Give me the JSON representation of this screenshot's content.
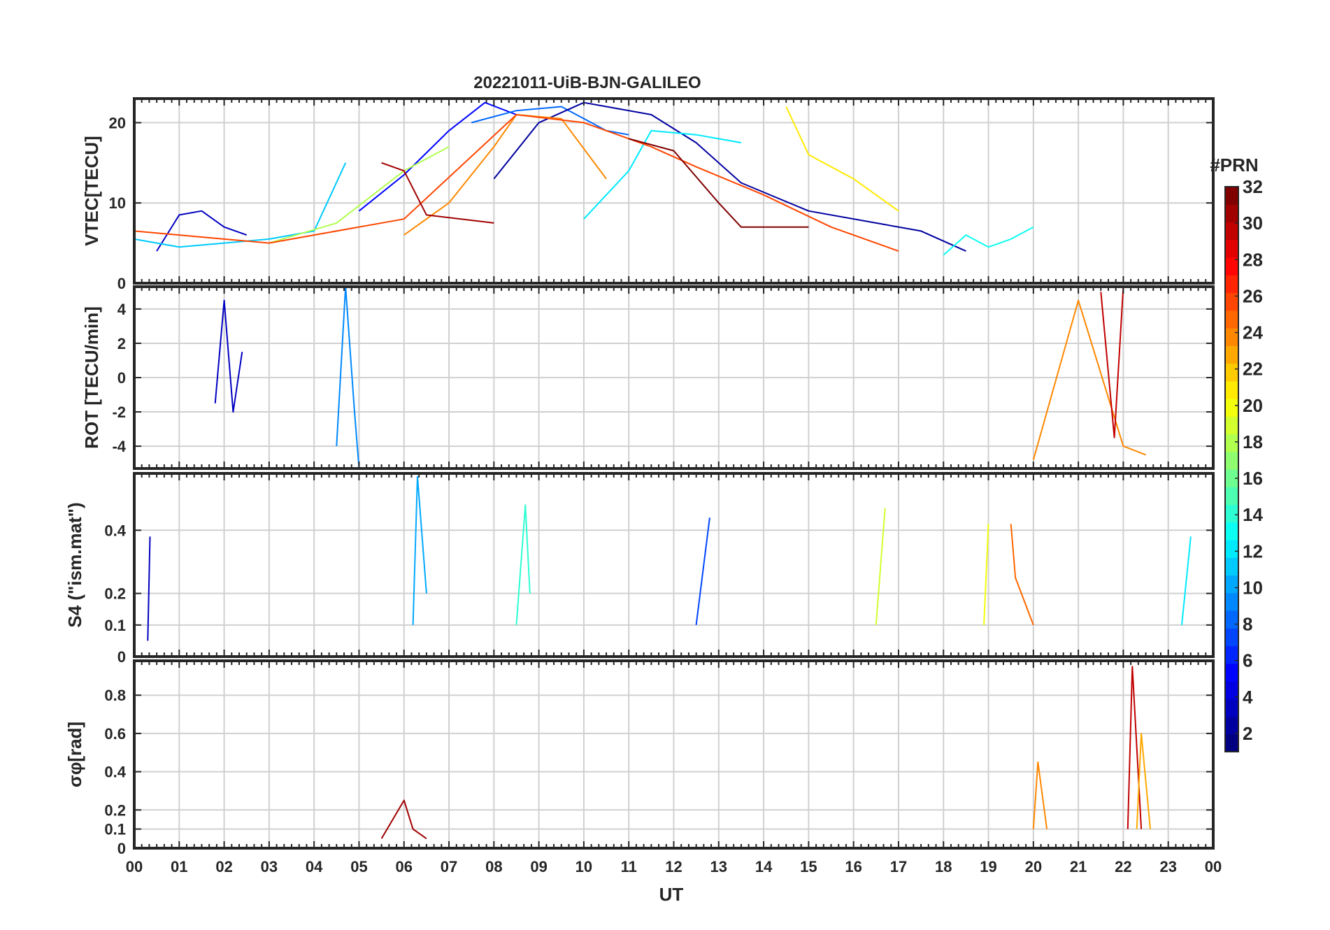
{
  "chart_data": [
    {
      "type": "line",
      "title": "20221011-UiB-BJN-GALILEO",
      "ylabel": "VTEC[TECU]",
      "xlabel": "",
      "xlim": [
        0,
        24
      ],
      "ylim": [
        0,
        23
      ],
      "yticks": [
        0,
        10,
        20
      ],
      "ytick_labels": [
        "0",
        "10",
        "20"
      ],
      "grid": true,
      "series": [
        {
          "name": "PRN 3",
          "prn": 3,
          "x": [
            0.5,
            1.0,
            1.5,
            2.0,
            2.5
          ],
          "y": [
            4.0,
            8.5,
            9.0,
            7.0,
            6.0
          ]
        },
        {
          "name": "PRN 5",
          "prn": 5,
          "x": [
            5.0,
            6.0,
            7.0,
            7.8,
            8.5
          ],
          "y": [
            9.0,
            13.5,
            19.0,
            22.5,
            21.0
          ]
        },
        {
          "name": "PRN 8",
          "prn": 8,
          "x": [
            7.5,
            8.5,
            9.5,
            10.5,
            11.0
          ],
          "y": [
            20.0,
            21.5,
            22.0,
            19.0,
            18.5
          ]
        },
        {
          "name": "PRN 2",
          "prn": 2,
          "x": [
            8.0,
            9.0,
            10.0,
            11.5,
            12.5,
            13.5,
            15.0,
            16.5,
            17.5,
            18.5
          ],
          "y": [
            13.0,
            20.0,
            22.5,
            21.0,
            17.5,
            12.5,
            9.0,
            7.5,
            6.5,
            4.0
          ]
        },
        {
          "name": "PRN 11",
          "prn": 11,
          "x": [
            0.0,
            1.0,
            2.0,
            3.0,
            4.0,
            4.7
          ],
          "y": [
            5.5,
            4.5,
            5.0,
            5.5,
            6.5,
            15.0
          ]
        },
        {
          "name": "PRN 12",
          "prn": 12,
          "x": [
            10.0,
            11.0,
            11.5,
            12.5,
            13.5
          ],
          "y": [
            8.0,
            14.0,
            19.0,
            18.5,
            17.5
          ]
        },
        {
          "name": "PRN 13",
          "prn": 13,
          "x": [
            18.0,
            18.5,
            19.0,
            19.5,
            20.0
          ],
          "y": [
            3.5,
            6.0,
            4.5,
            5.5,
            7.0
          ]
        },
        {
          "name": "PRN 18",
          "prn": 18,
          "x": [
            3.0,
            4.5,
            6.0,
            7.0
          ],
          "y": [
            5.0,
            7.5,
            14.0,
            17.0
          ]
        },
        {
          "name": "PRN 21",
          "prn": 21,
          "x": [
            14.5,
            15.0,
            16.0,
            17.0
          ],
          "y": [
            22.0,
            16.0,
            13.0,
            9.0
          ]
        },
        {
          "name": "PRN 24",
          "prn": 24,
          "x": [
            6.0,
            7.0,
            8.0,
            8.5,
            9.5,
            10.5
          ],
          "y": [
            6.0,
            10.0,
            17.0,
            21.0,
            20.5,
            13.0
          ]
        },
        {
          "name": "PRN 26",
          "prn": 26,
          "x": [
            0.0,
            1.0,
            2.0,
            3.0,
            4.0,
            6.0,
            8.5,
            10.0,
            11.5,
            12.5,
            14.0,
            15.5,
            17.0
          ],
          "y": [
            6.5,
            6.0,
            5.5,
            5.0,
            6.0,
            8.0,
            21.0,
            20.0,
            17.0,
            14.5,
            11.0,
            7.0,
            4.0
          ]
        },
        {
          "name": "PRN 31",
          "prn": 31,
          "x": [
            5.5,
            6.0,
            6.5,
            8.0
          ],
          "y": [
            15.0,
            14.0,
            8.5,
            7.5
          ]
        },
        {
          "name": "PRN 32",
          "prn": 32,
          "x": [
            11.0,
            12.0,
            13.0,
            13.5,
            15.0
          ],
          "y": [
            18.0,
            16.5,
            10.0,
            7.0,
            7.0
          ]
        }
      ]
    },
    {
      "type": "line",
      "title": "",
      "ylabel": "ROT [TECU/min]",
      "xlabel": "",
      "xlim": [
        0,
        24
      ],
      "ylim": [
        -5.3,
        5.3
      ],
      "yticks": [
        -4,
        -2,
        0,
        2,
        4
      ],
      "ytick_labels": [
        "-4",
        "-2",
        "0",
        "2",
        "4"
      ],
      "grid": true,
      "series": [
        {
          "name": "PRN 3",
          "prn": 3,
          "x": [
            1.8,
            2.0,
            2.2,
            2.4
          ],
          "y": [
            -1.5,
            4.5,
            -2.0,
            1.5
          ]
        },
        {
          "name": "PRN 9",
          "prn": 9,
          "x": [
            4.5,
            4.7,
            4.9,
            5.0
          ],
          "y": [
            -4.0,
            5.3,
            -2.0,
            -5.3
          ]
        },
        {
          "name": "PRN 24",
          "prn": 24,
          "x": [
            20.0,
            21.0,
            22.0,
            22.5
          ],
          "y": [
            -4.8,
            4.5,
            -4.0,
            -4.5
          ]
        },
        {
          "name": "PRN 30",
          "prn": 30,
          "x": [
            21.5,
            21.8,
            22.0
          ],
          "y": [
            5.0,
            -3.5,
            5.3
          ]
        }
      ]
    },
    {
      "type": "line",
      "title": "",
      "ylabel": "S4 (\"ism.mat\")",
      "xlabel": "",
      "xlim": [
        0,
        24
      ],
      "ylim": [
        0,
        0.58
      ],
      "yticks": [
        0,
        0.1,
        0.2,
        0.4
      ],
      "ytick_labels": [
        "0",
        "0.1",
        "0.2",
        "0.4"
      ],
      "grid": true,
      "series": [
        {
          "name": "PRN 3",
          "prn": 3,
          "x": [
            0.3,
            0.35
          ],
          "y": [
            0.05,
            0.38
          ]
        },
        {
          "name": "PRN 10",
          "prn": 10,
          "x": [
            6.2,
            6.3,
            6.5
          ],
          "y": [
            0.1,
            0.57,
            0.2
          ]
        },
        {
          "name": "PRN 14",
          "prn": 14,
          "x": [
            8.5,
            8.7,
            8.8
          ],
          "y": [
            0.1,
            0.48,
            0.2
          ]
        },
        {
          "name": "PRN 7",
          "prn": 7,
          "x": [
            12.5,
            12.8
          ],
          "y": [
            0.1,
            0.44
          ]
        },
        {
          "name": "PRN 19",
          "prn": 19,
          "x": [
            16.5,
            16.7
          ],
          "y": [
            0.1,
            0.47
          ]
        },
        {
          "name": "PRN 20",
          "prn": 20,
          "x": [
            18.9,
            19.0
          ],
          "y": [
            0.1,
            0.42
          ]
        },
        {
          "name": "PRN 25",
          "prn": 25,
          "x": [
            19.5,
            19.6,
            20.0
          ],
          "y": [
            0.42,
            0.25,
            0.1
          ]
        },
        {
          "name": "PRN 12",
          "prn": 12,
          "x": [
            23.3,
            23.5
          ],
          "y": [
            0.1,
            0.38
          ]
        }
      ]
    },
    {
      "type": "line",
      "title": "",
      "ylabel": "σφ[rad]",
      "xlabel": "UT",
      "xlim": [
        0,
        24
      ],
      "ylim": [
        0,
        0.98
      ],
      "yticks": [
        0,
        0.1,
        0.2,
        0.4,
        0.6,
        0.8
      ],
      "ytick_labels": [
        "0",
        "0.1",
        "0.2",
        "0.4",
        "0.6",
        "0.8"
      ],
      "grid": true,
      "series": [
        {
          "name": "PRN 31",
          "prn": 31,
          "x": [
            5.5,
            6.0,
            6.2,
            6.5
          ],
          "y": [
            0.05,
            0.25,
            0.1,
            0.05
          ]
        },
        {
          "name": "PRN 24",
          "prn": 24,
          "x": [
            20.0,
            20.1,
            20.3
          ],
          "y": [
            0.1,
            0.45,
            0.1
          ]
        },
        {
          "name": "PRN 30",
          "prn": 30,
          "x": [
            22.1,
            22.2,
            22.4
          ],
          "y": [
            0.1,
            0.95,
            0.1
          ]
        },
        {
          "name": "PRN 23",
          "prn": 23,
          "x": [
            22.3,
            22.4,
            22.6
          ],
          "y": [
            0.1,
            0.6,
            0.1
          ]
        }
      ]
    }
  ],
  "x_tick_labels": [
    "00",
    "01",
    "02",
    "03",
    "04",
    "05",
    "06",
    "07",
    "08",
    "09",
    "10",
    "11",
    "12",
    "13",
    "14",
    "15",
    "16",
    "17",
    "18",
    "19",
    "20",
    "21",
    "22",
    "23",
    "00"
  ],
  "colorbar": {
    "title": "#PRN",
    "range": [
      1,
      32
    ],
    "tick_values": [
      2,
      4,
      6,
      8,
      10,
      12,
      14,
      16,
      18,
      20,
      22,
      24,
      26,
      28,
      30,
      32
    ],
    "tick_labels": [
      "2",
      "4",
      "6",
      "8",
      "10",
      "12",
      "14",
      "16",
      "18",
      "20",
      "22",
      "24",
      "26",
      "28",
      "30",
      "32"
    ],
    "colormap": "jet",
    "num_colors": 32
  }
}
